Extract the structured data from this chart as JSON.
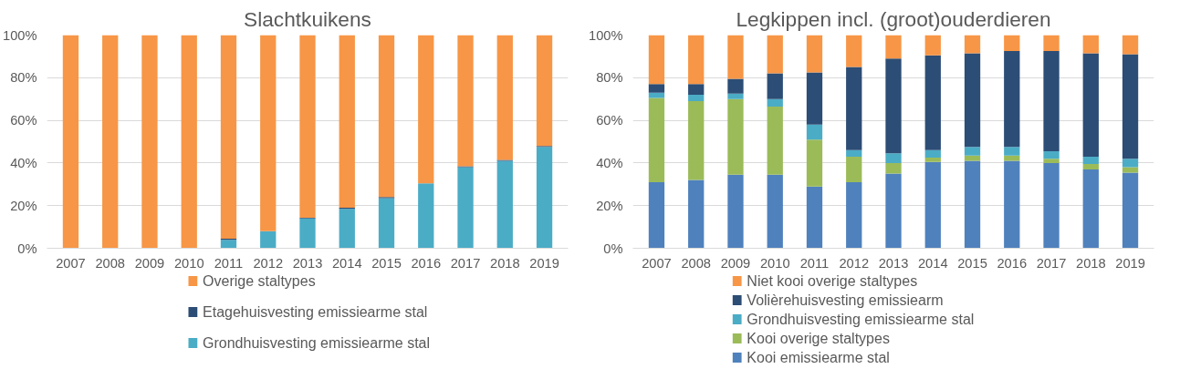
{
  "chart_data": [
    {
      "type": "bar",
      "title": "Slachtkuikens",
      "stacked": true,
      "categories": [
        "2007",
        "2008",
        "2009",
        "2010",
        "2011",
        "2012",
        "2013",
        "2014",
        "2015",
        "2016",
        "2017",
        "2018",
        "2019"
      ],
      "series": [
        {
          "name": "Grondhuisvesting emissiearme stal",
          "color": "#4bacc6",
          "values": [
            0,
            0,
            0,
            0,
            4,
            8,
            14,
            18.5,
            23.5,
            30.5,
            38,
            41,
            47.5
          ]
        },
        {
          "name": "Etagehuisvesting emissiearme stal",
          "color": "#2c4d75",
          "values": [
            0,
            0,
            0,
            0,
            0.5,
            0,
            0.3,
            0.5,
            0.5,
            0,
            0.5,
            0.5,
            0.5
          ]
        },
        {
          "name": "Overige staltypes",
          "color": "#f79646",
          "values": [
            100,
            100,
            100,
            100,
            95.5,
            92,
            85.7,
            81,
            76,
            69.5,
            61.5,
            58.5,
            52
          ]
        }
      ],
      "ylim": [
        0,
        100
      ],
      "yticks": [
        {
          "value": 0,
          "label": "0%"
        },
        {
          "value": 20,
          "label": "20%"
        },
        {
          "value": 40,
          "label": "40%"
        },
        {
          "value": 60,
          "label": "60%"
        },
        {
          "value": 80,
          "label": "80%"
        },
        {
          "value": 100,
          "label": "100%"
        }
      ],
      "grid": "y",
      "legend": "bottom"
    },
    {
      "type": "bar",
      "title": "Legkippen incl. (groot)ouderdieren",
      "stacked": true,
      "categories": [
        "2007",
        "2008",
        "2009",
        "2010",
        "2011",
        "2012",
        "2013",
        "2014",
        "2015",
        "2016",
        "2017",
        "2018",
        "2019"
      ],
      "series": [
        {
          "name": "Kooi emissiearme stal",
          "color": "#4f81bd",
          "values": [
            31,
            32,
            34.5,
            34.5,
            29,
            31,
            35,
            40.5,
            41,
            41,
            40,
            37,
            35.5
          ]
        },
        {
          "name": "Kooi overige staltypes",
          "color": "#9bbb59",
          "values": [
            39.5,
            37,
            35.5,
            32,
            22,
            12,
            5,
            2,
            2.5,
            2.5,
            2,
            2.5,
            2.5
          ]
        },
        {
          "name": "Grondhuisvesting emissiearme stal",
          "color": "#4bacc6",
          "values": [
            2.5,
            3,
            2.5,
            3.5,
            7,
            3,
            4.5,
            3.5,
            4,
            4,
            3.5,
            3.5,
            4
          ]
        },
        {
          "name": "Volièrehuisvesting emissiearm",
          "color": "#2c4d75",
          "values": [
            4,
            5,
            7,
            12,
            24.5,
            39,
            44.5,
            44.5,
            44,
            45,
            47,
            48.5,
            49
          ]
        },
        {
          "name": "Niet kooi overige staltypes",
          "color": "#f79646",
          "values": [
            23,
            23,
            20.5,
            18,
            17.5,
            15,
            11,
            9.5,
            8.5,
            7.5,
            7.5,
            8.5,
            9
          ]
        }
      ],
      "ylim": [
        0,
        100
      ],
      "yticks": [
        {
          "value": 0,
          "label": "0%"
        },
        {
          "value": 20,
          "label": "20%"
        },
        {
          "value": 40,
          "label": "40%"
        },
        {
          "value": 60,
          "label": "60%"
        },
        {
          "value": 80,
          "label": "80%"
        },
        {
          "value": 100,
          "label": "100%"
        }
      ],
      "grid": "y",
      "legend": "bottom"
    }
  ]
}
